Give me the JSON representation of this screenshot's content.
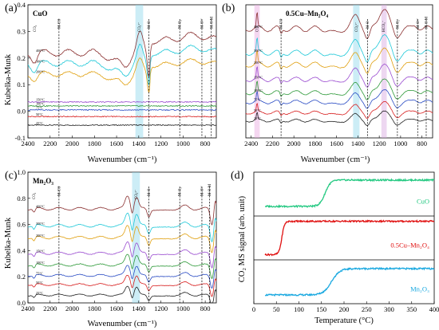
{
  "chart_data": [
    {
      "id": "a",
      "type": "line",
      "panel_label": "(a)",
      "title": "CuO",
      "xlabel": "Wavenumber (cm⁻¹)",
      "ylabel": "Kubelka-Munk",
      "xlim": [
        2400,
        700
      ],
      "ylim": [
        -0.1,
        0.4
      ],
      "x_ticks": [
        2400,
        2200,
        2000,
        1800,
        1600,
        1400,
        1200,
        1000,
        800
      ],
      "y_ticks": [
        -0.1,
        0.0,
        0.1,
        0.2,
        0.3,
        0.4
      ],
      "bands": [
        {
          "range": [
            1430,
            1360
          ],
          "color": "#8fd8ec"
        }
      ],
      "vlines": [
        {
          "x": 2120,
          "label": "M-CO"
        },
        {
          "x": 1310,
          "label": "M-O"
        },
        {
          "x": 1030,
          "label": "M-O₂"
        },
        {
          "x": 830,
          "label": "M-O²⁻"
        },
        {
          "x": 745,
          "label": "M-O-M"
        }
      ],
      "markers": [
        {
          "x": 2340,
          "label": "CO₂"
        },
        {
          "x": 1395,
          "label": "CO₃²⁻"
        }
      ],
      "series": [
        {
          "temp": "25°C",
          "color": "#222222",
          "base": -0.052,
          "profile": "flat",
          "amp": 0.0
        },
        {
          "temp": "50°C",
          "color": "#d82020",
          "base": -0.02,
          "profile": "flat",
          "amp": 0.0
        },
        {
          "temp": "75°C",
          "color": "#2a4cc4",
          "base": 0.005,
          "profile": "flat",
          "amp": 0.0
        },
        {
          "temp": "100°C",
          "color": "#2f9a3a",
          "base": 0.02,
          "profile": "flat",
          "amp": 0.0
        },
        {
          "temp": "150°C",
          "color": "#9a4cd0",
          "base": 0.035,
          "profile": "flat",
          "amp": 0.0
        },
        {
          "temp": "200°C",
          "color": "#e0a010",
          "base": 0.14,
          "profile": "cuo",
          "amp": 0.75
        },
        {
          "temp": "300°C",
          "color": "#1ec8d8",
          "base": 0.18,
          "profile": "cuo",
          "amp": 0.88
        },
        {
          "temp": "400°C",
          "color": "#8a3030",
          "base": 0.22,
          "profile": "cuo",
          "amp": 1.0
        }
      ]
    },
    {
      "id": "b",
      "type": "line",
      "panel_label": "(b)",
      "title": "0.5Cu–Mn₂O₄",
      "xlabel": "Wavenumber (cm⁻¹)",
      "ylabel": "",
      "xlim": [
        2450,
        700
      ],
      "ylim": [
        0.0,
        1.0
      ],
      "x_ticks": [
        2400,
        2200,
        2000,
        1800,
        1600,
        1400,
        1200,
        1000,
        800
      ],
      "y_ticks": [],
      "bands": [
        {
          "range": [
            2370,
            2320
          ],
          "color": "#e8a6e0"
        },
        {
          "range": [
            1445,
            1385
          ],
          "color": "#8fd8ec"
        },
        {
          "range": [
            1180,
            1130
          ],
          "color": "#d8a6e0"
        }
      ],
      "vlines": [
        {
          "x": 2120,
          "label": "M-CO"
        },
        {
          "x": 1310,
          "label": "M-O"
        },
        {
          "x": 1030,
          "label": "M-O₂"
        },
        {
          "x": 840,
          "label": "M-O²⁻"
        },
        {
          "x": 760,
          "label": "M-O-M"
        }
      ],
      "markers": [
        {
          "x": 2345,
          "label": "CO₂"
        },
        {
          "x": 1415,
          "label": "CO₃²⁻"
        },
        {
          "x": 1160,
          "label": "HCO₃⁻"
        }
      ],
      "series": [
        {
          "temp": "25°C",
          "color": "#222222",
          "base": 0.13,
          "profile": "mix",
          "amp": 0.35
        },
        {
          "temp": "50°C",
          "color": "#d82020",
          "base": 0.19,
          "profile": "mix",
          "amp": 0.4
        },
        {
          "temp": "75°C",
          "color": "#2a4cc4",
          "base": 0.27,
          "profile": "mix",
          "amp": 0.45
        },
        {
          "temp": "100°C",
          "color": "#2f9a3a",
          "base": 0.34,
          "profile": "mix",
          "amp": 0.5
        },
        {
          "temp": "150°C",
          "color": "#9a4cd0",
          "base": 0.44,
          "profile": "mix",
          "amp": 0.55
        },
        {
          "temp": "200°C",
          "color": "#e0a010",
          "base": 0.55,
          "profile": "mix",
          "amp": 0.6
        },
        {
          "temp": "300°C",
          "color": "#1ec8d8",
          "base": 0.64,
          "profile": "mix",
          "amp": 0.65
        },
        {
          "temp": "400°C",
          "color": "#8a3030",
          "base": 0.82,
          "profile": "mix",
          "amp": 0.7
        }
      ]
    },
    {
      "id": "c",
      "type": "line",
      "panel_label": "(c)",
      "title": "Mn₂O₃",
      "xlabel": "Wavenumber (cm⁻¹)",
      "ylabel": "Kubelka-Munk",
      "xlim": [
        2400,
        700
      ],
      "ylim": [
        0.0,
        1.0
      ],
      "x_ticks": [
        2400,
        2200,
        2000,
        1800,
        1600,
        1400,
        1200,
        1000,
        800
      ],
      "y_ticks": [
        0.0,
        0.2,
        0.4,
        0.6,
        0.8,
        1.0
      ],
      "bands": [
        {
          "range": [
            1460,
            1390
          ],
          "color": "#8fd8ec"
        }
      ],
      "vlines": [
        {
          "x": 2120,
          "label": "M-CO"
        },
        {
          "x": 1310,
          "label": "M-O"
        },
        {
          "x": 1030,
          "label": "M-O₂"
        },
        {
          "x": 830,
          "label": "M-O²⁻"
        },
        {
          "x": 760,
          "label": "M-O-M"
        }
      ],
      "markers": [
        {
          "x": 2345,
          "label": "CO₂"
        },
        {
          "x": 1425,
          "label": "CO₃²⁻"
        }
      ],
      "series": [
        {
          "temp": "25°C",
          "color": "#222222",
          "base": 0.06,
          "profile": "mn",
          "amp": 0.7
        },
        {
          "temp": "50°C",
          "color": "#d82020",
          "base": 0.14,
          "profile": "mn",
          "amp": 0.75
        },
        {
          "temp": "75°C",
          "color": "#2a4cc4",
          "base": 0.21,
          "profile": "mn",
          "amp": 0.8
        },
        {
          "temp": "100°C",
          "color": "#2f9a3a",
          "base": 0.29,
          "profile": "mn",
          "amp": 0.85
        },
        {
          "temp": "150°C",
          "color": "#9a4cd0",
          "base": 0.38,
          "profile": "mn",
          "amp": 0.9
        },
        {
          "temp": "200°C",
          "color": "#e0a010",
          "base": 0.5,
          "profile": "mn",
          "amp": 0.95
        },
        {
          "temp": "300°C",
          "color": "#1ec8d8",
          "base": 0.59,
          "profile": "mn",
          "amp": 1.0
        },
        {
          "temp": "400°C",
          "color": "#8a3030",
          "base": 0.72,
          "profile": "mn",
          "amp": 1.0
        }
      ]
    },
    {
      "id": "d",
      "type": "line",
      "panel_label": "(d)",
      "xlabel": "Temperature (°C)",
      "ylabel": "CO₂ MS signal (arb. unit)",
      "xlim": [
        0,
        400
      ],
      "x_ticks": [
        0,
        50,
        100,
        150,
        200,
        250,
        300,
        350,
        400
      ],
      "series": [
        {
          "name": "CuO",
          "color": "#22c880",
          "x_start": 25,
          "x_end": 400,
          "low": 0.22,
          "high": 0.82,
          "onset": 158,
          "width": 6
        },
        {
          "name": "0.5Cu–Mn₂O₄",
          "color": "#e01010",
          "x_start": 25,
          "x_end": 400,
          "low": 0.12,
          "high": 0.88,
          "onset": 62,
          "width": 3
        },
        {
          "name": "Mn₂O₃",
          "color": "#18a8e0",
          "x_start": 25,
          "x_end": 400,
          "low": 0.2,
          "high": 0.8,
          "onset": 172,
          "width": 9
        }
      ]
    }
  ]
}
